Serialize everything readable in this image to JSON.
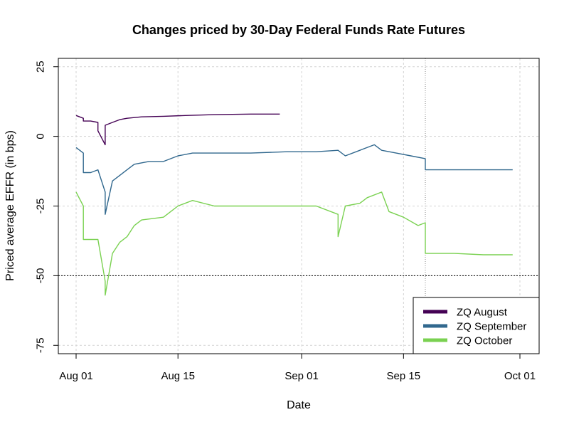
{
  "chart_data": {
    "type": "line",
    "title": "Changes priced by 30-Day Federal Funds Rate Futures",
    "xlabel": "Date",
    "ylabel": "Priced average EFFR (in bps)",
    "x_ticks": [
      "Aug 01",
      "Aug 15",
      "Sep 01",
      "Sep 15",
      "Oct 01"
    ],
    "y_ticks": [
      "25",
      "0",
      "-25",
      "-50",
      "-75"
    ],
    "ylim": [
      -78,
      28
    ],
    "grid": true,
    "legend_position": "bottom-right",
    "reference_lines": [
      {
        "orientation": "horizontal",
        "value": -50,
        "style": "dashed"
      },
      {
        "orientation": "vertical",
        "value": "Sep 18",
        "style": "dotted"
      }
    ],
    "series": [
      {
        "name": "ZQ August",
        "color": "#440154",
        "points": [
          [
            "Aug 01",
            7.5
          ],
          [
            "Aug 02",
            6.5
          ],
          [
            "Aug 02",
            5.5
          ],
          [
            "Aug 03",
            5.5
          ],
          [
            "Aug 04",
            5.0
          ],
          [
            "Aug 04",
            2.0
          ],
          [
            "Aug 05",
            -3.0
          ],
          [
            "Aug 05",
            4.0
          ],
          [
            "Aug 06",
            5.0
          ],
          [
            "Aug 07",
            6.0
          ],
          [
            "Aug 08",
            6.5
          ],
          [
            "Aug 10",
            7.0
          ],
          [
            "Aug 13",
            7.2
          ],
          [
            "Aug 16",
            7.5
          ],
          [
            "Aug 20",
            7.8
          ],
          [
            "Aug 25",
            8.0
          ],
          [
            "Aug 29",
            8.0
          ]
        ]
      },
      {
        "name": "ZQ September",
        "color": "#31688E",
        "points": [
          [
            "Aug 01",
            -4
          ],
          [
            "Aug 02",
            -6
          ],
          [
            "Aug 02",
            -13
          ],
          [
            "Aug 03",
            -13
          ],
          [
            "Aug 04",
            -12
          ],
          [
            "Aug 05",
            -20
          ],
          [
            "Aug 05",
            -28
          ],
          [
            "Aug 06",
            -16
          ],
          [
            "Aug 07",
            -14
          ],
          [
            "Aug 08",
            -12
          ],
          [
            "Aug 09",
            -10
          ],
          [
            "Aug 11",
            -9
          ],
          [
            "Aug 13",
            -9
          ],
          [
            "Aug 15",
            -7
          ],
          [
            "Aug 17",
            -6
          ],
          [
            "Aug 20",
            -6
          ],
          [
            "Aug 25",
            -6
          ],
          [
            "Aug 30",
            -5.5
          ],
          [
            "Sep 03",
            -5.5
          ],
          [
            "Sep 06",
            -5
          ],
          [
            "Sep 07",
            -7
          ],
          [
            "Sep 09",
            -5
          ],
          [
            "Sep 11",
            -3
          ],
          [
            "Sep 12",
            -5
          ],
          [
            "Sep 14",
            -6
          ],
          [
            "Sep 16",
            -7
          ],
          [
            "Sep 18",
            -8
          ],
          [
            "Sep 18",
            -12
          ],
          [
            "Sep 22",
            -12
          ],
          [
            "Sep 26",
            -12
          ],
          [
            "Sep 30",
            -12
          ]
        ]
      },
      {
        "name": "ZQ October",
        "color": "#7AD151",
        "points": [
          [
            "Aug 01",
            -20
          ],
          [
            "Aug 02",
            -25
          ],
          [
            "Aug 02",
            -37
          ],
          [
            "Aug 04",
            -37
          ],
          [
            "Aug 05",
            -52
          ],
          [
            "Aug 05",
            -57
          ],
          [
            "Aug 06",
            -42
          ],
          [
            "Aug 07",
            -38
          ],
          [
            "Aug 08",
            -36
          ],
          [
            "Aug 09",
            -32
          ],
          [
            "Aug 10",
            -30
          ],
          [
            "Aug 13",
            -29
          ],
          [
            "Aug 14",
            -27
          ],
          [
            "Aug 15",
            -25
          ],
          [
            "Aug 17",
            -23
          ],
          [
            "Aug 20",
            -25
          ],
          [
            "Aug 23",
            -25
          ],
          [
            "Aug 27",
            -25
          ],
          [
            "Aug 31",
            -25
          ],
          [
            "Sep 03",
            -25
          ],
          [
            "Sep 06",
            -28
          ],
          [
            "Sep 06",
            -36
          ],
          [
            "Sep 07",
            -25
          ],
          [
            "Sep 09",
            -24
          ],
          [
            "Sep 10",
            -22
          ],
          [
            "Sep 12",
            -20
          ],
          [
            "Sep 13",
            -27
          ],
          [
            "Sep 15",
            -29
          ],
          [
            "Sep 17",
            -32
          ],
          [
            "Sep 18",
            -31
          ],
          [
            "Sep 18",
            -42
          ],
          [
            "Sep 22",
            -42
          ],
          [
            "Sep 26",
            -42.5
          ],
          [
            "Sep 30",
            -42.5
          ]
        ]
      }
    ]
  }
}
